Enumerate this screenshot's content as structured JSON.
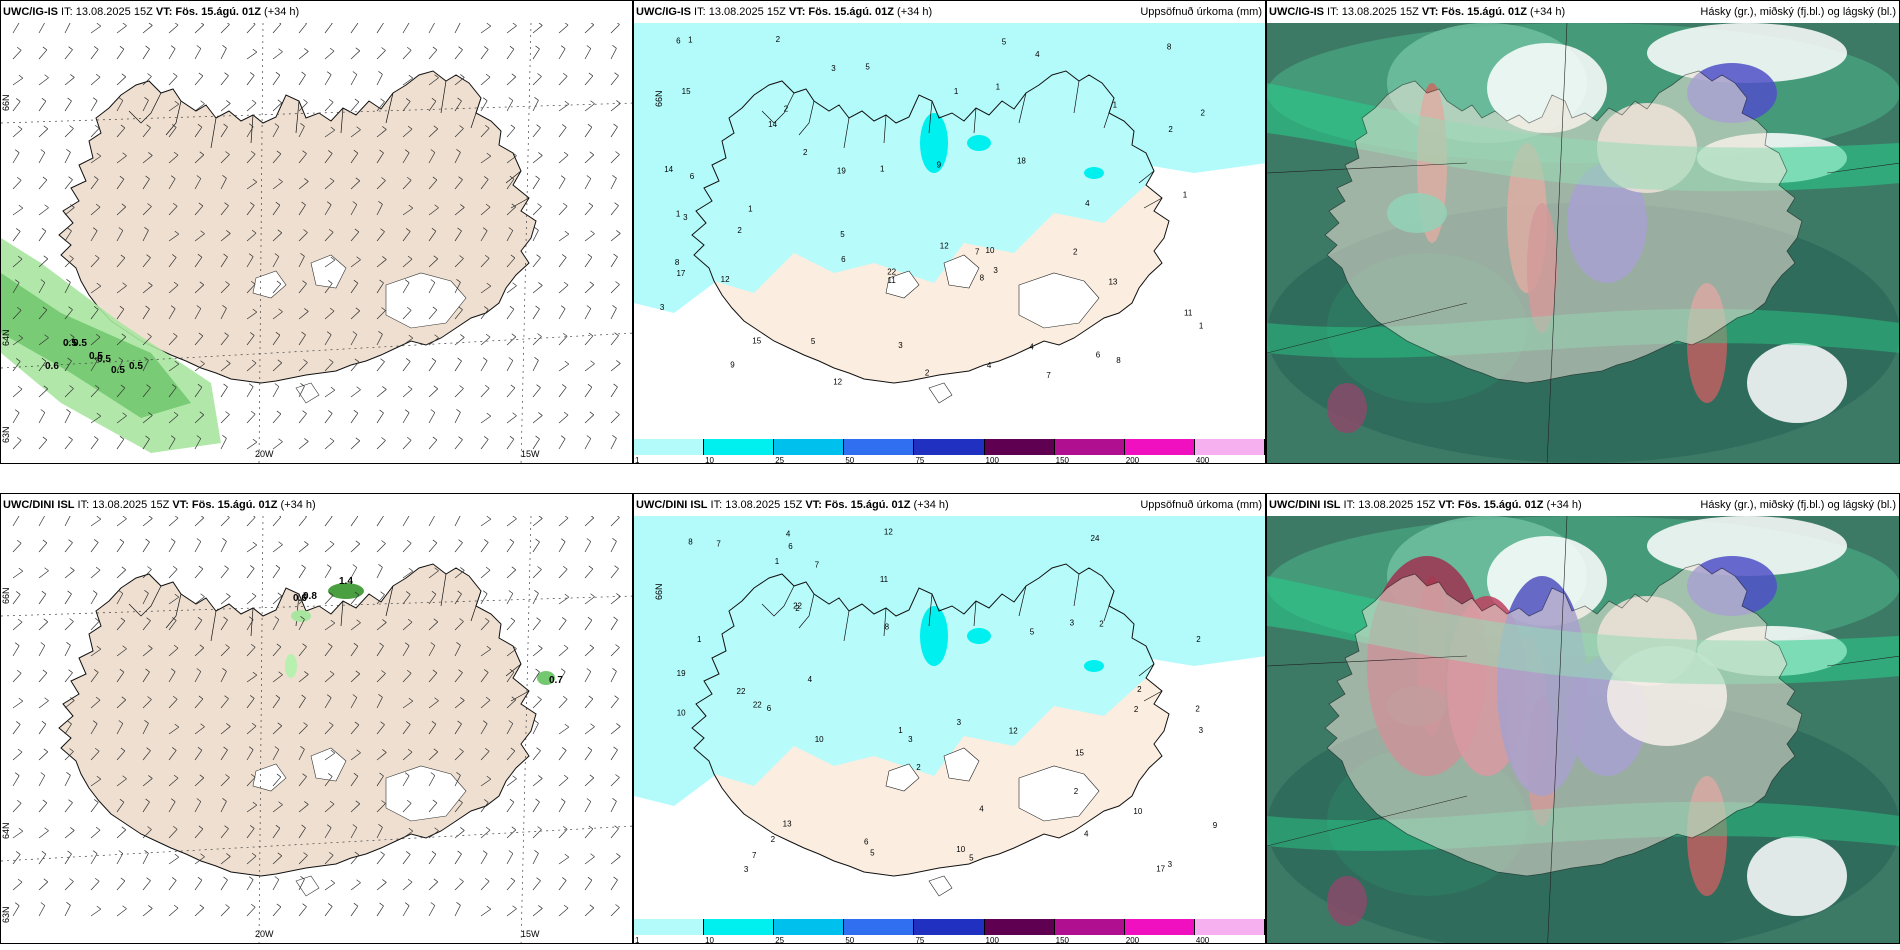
{
  "panels": [
    {
      "id": "p1",
      "left_bold": "UWC/IG-IS",
      "run_text": " IT: 13.08.2025 15Z ",
      "valid_bold": "VT: Fös. 15.ágú. 01Z",
      "lead_text": " (+34 h)",
      "right_title": "",
      "type": "wind"
    },
    {
      "id": "p2",
      "left_bold": "UWC/IG-IS",
      "run_text": " IT: 13.08.2025 15Z ",
      "valid_bold": "VT: Fös. 15.ágú. 01Z",
      "lead_text": " (+34 h)",
      "right_title": "Uppsöfnuð úrkoma (mm)",
      "type": "precip"
    },
    {
      "id": "p3",
      "left_bold": "UWC/IG-IS",
      "run_text": " IT: 13.08.2025 15Z ",
      "valid_bold": "VT: Fös. 15.ágú. 01Z",
      "lead_text": " (+34 h)",
      "right_title": "Hásky (gr.), miðský (fj.bl.) og lágský (bl.)",
      "type": "cloud"
    },
    {
      "id": "p4",
      "left_bold": "UWC/DINI ISL",
      "run_text": " IT: 13.08.2025 15Z ",
      "valid_bold": "VT: Fös. 15.ágú. 01Z",
      "lead_text": " (+34 h)",
      "right_title": "",
      "type": "wind"
    },
    {
      "id": "p5",
      "left_bold": "UWC/DINI ISL",
      "run_text": " IT: 13.08.2025 15Z ",
      "valid_bold": "VT: Fös. 15.ágú. 01Z",
      "lead_text": " (+34 h)",
      "right_title": "Uppsöfnuð úrkoma (mm)",
      "type": "precip"
    },
    {
      "id": "p6",
      "left_bold": "UWC/DINI ISL",
      "run_text": " IT: 13.08.2025 15Z ",
      "valid_bold": "VT: Fös. 15.ágú. 01Z",
      "lead_text": " (+34 h)",
      "right_title": "Hásky (gr.), miðský (fj.bl.) og lágský (bl.)",
      "type": "cloud"
    }
  ],
  "axis_labels": {
    "lon1": "20W",
    "lon2": "15W",
    "lat1": "66N",
    "lat2": "64N",
    "lat3": "63N"
  },
  "colorbar": {
    "labels": [
      "1",
      "10",
      "25",
      "50",
      "75",
      "100",
      "150",
      "200",
      "400",
      ""
    ],
    "colors": [
      "#b3fbfb",
      "#00f0f0",
      "#00c0ee",
      "#3070f0",
      "#2030c0",
      "#600050",
      "#b01090",
      "#f010c0",
      "#f6b0f0"
    ]
  },
  "precip_values_top": [
    "3",
    "6",
    "8",
    "8",
    "5",
    "1",
    "4",
    "10",
    "19",
    "9",
    "15",
    "14",
    "12",
    "22",
    "13",
    "11",
    "18",
    "17",
    "12",
    "14",
    "8",
    "7",
    "11",
    "9",
    "6",
    "5",
    "4",
    "3",
    "2",
    "1",
    "1",
    "6",
    "5",
    "15",
    "12",
    "2",
    "7",
    "3",
    "8",
    "2",
    "1",
    "1",
    "2",
    "3",
    "4",
    "2",
    "6",
    "4",
    "3",
    "2",
    "1",
    "1",
    "1",
    "1",
    "2",
    "2",
    "5"
  ],
  "precip_values_bottom": [
    "2",
    "5",
    "4",
    "3",
    "1",
    "13",
    "15",
    "22",
    "10",
    "22",
    "12",
    "24",
    "22",
    "17",
    "19",
    "9",
    "10",
    "11",
    "8",
    "7",
    "6",
    "5",
    "12",
    "4",
    "3",
    "2",
    "1",
    "2",
    "10",
    "10",
    "7",
    "7",
    "8",
    "6",
    "6",
    "5",
    "4",
    "3",
    "2",
    "2",
    "2",
    "3",
    "4",
    "3",
    "2",
    "1",
    "2",
    "2",
    "3"
  ],
  "wind_labels_top": [
    "0.5",
    "0.5",
    "0.6",
    "0.5",
    "0.5",
    "0.5",
    "0.5"
  ],
  "wind_labels_bottom": [
    "1.4",
    "0.8",
    "0.6",
    "0.7"
  ]
}
